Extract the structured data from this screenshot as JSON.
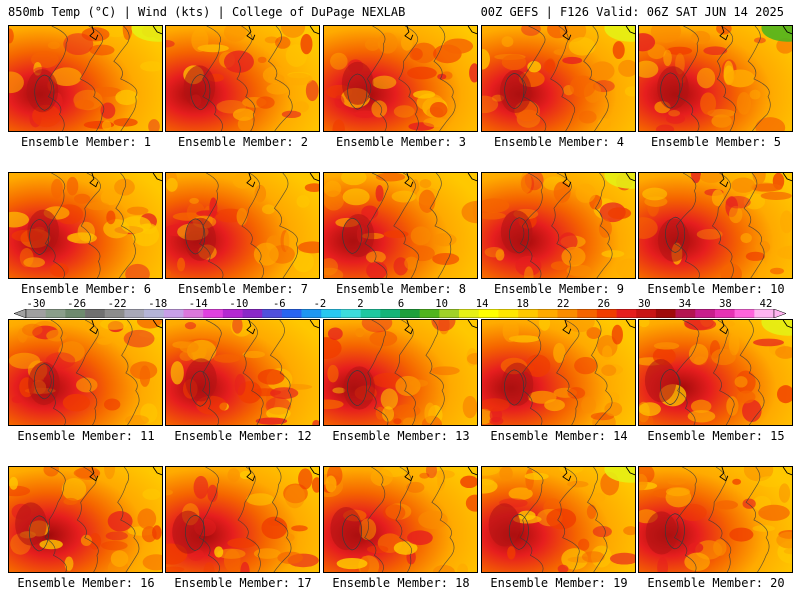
{
  "header": {
    "left": "850mb Temp (°C) | Wind (kts) | College of DuPage NEXLAB",
    "right": "00Z GEFS | F126 Valid: 06Z SAT JUN 14 2025"
  },
  "panels": [
    {
      "label": "Ensemble Member: 1"
    },
    {
      "label": "Ensemble Member: 2"
    },
    {
      "label": "Ensemble Member: 3"
    },
    {
      "label": "Ensemble Member: 4"
    },
    {
      "label": "Ensemble Member: 5"
    },
    {
      "label": "Ensemble Member: 6"
    },
    {
      "label": "Ensemble Member: 7"
    },
    {
      "label": "Ensemble Member: 8"
    },
    {
      "label": "Ensemble Member: 9"
    },
    {
      "label": "Ensemble Member: 10"
    },
    {
      "label": "Ensemble Member: 11"
    },
    {
      "label": "Ensemble Member: 12"
    },
    {
      "label": "Ensemble Member: 13"
    },
    {
      "label": "Ensemble Member: 14"
    },
    {
      "label": "Ensemble Member: 15"
    },
    {
      "label": "Ensemble Member: 16"
    },
    {
      "label": "Ensemble Member: 17"
    },
    {
      "label": "Ensemble Member: 18"
    },
    {
      "label": "Ensemble Member: 19"
    },
    {
      "label": "Ensemble Member: 20"
    }
  ],
  "colorbar": {
    "tick_labels": [
      "-30",
      "-26",
      "-22",
      "-18",
      "-14",
      "-10",
      "-6",
      "-2",
      "2",
      "6",
      "10",
      "14",
      "18",
      "22",
      "26",
      "30",
      "34",
      "38",
      "42"
    ],
    "colors": [
      "#a0a0a0",
      "#8a9e8a",
      "#6e8a6e",
      "#707070",
      "#8c8c8c",
      "#a8a8b8",
      "#b4b4d8",
      "#c8a0e8",
      "#dc78dc",
      "#e040e0",
      "#b428d2",
      "#8a28c8",
      "#5050dc",
      "#2864f0",
      "#1e96f0",
      "#28c8f0",
      "#3cdcdc",
      "#1ec8a0",
      "#14b478",
      "#1ea03c",
      "#50b41e",
      "#a0d228",
      "#e6f014",
      "#ffff00",
      "#ffe600",
      "#ffc800",
      "#ffaa00",
      "#fa8c00",
      "#f56400",
      "#f03c00",
      "#e61e1e",
      "#c81414",
      "#a00a0a",
      "#b41450",
      "#c81e8c",
      "#e632b4",
      "#ff64dc",
      "#ffb4f0"
    ]
  }
}
